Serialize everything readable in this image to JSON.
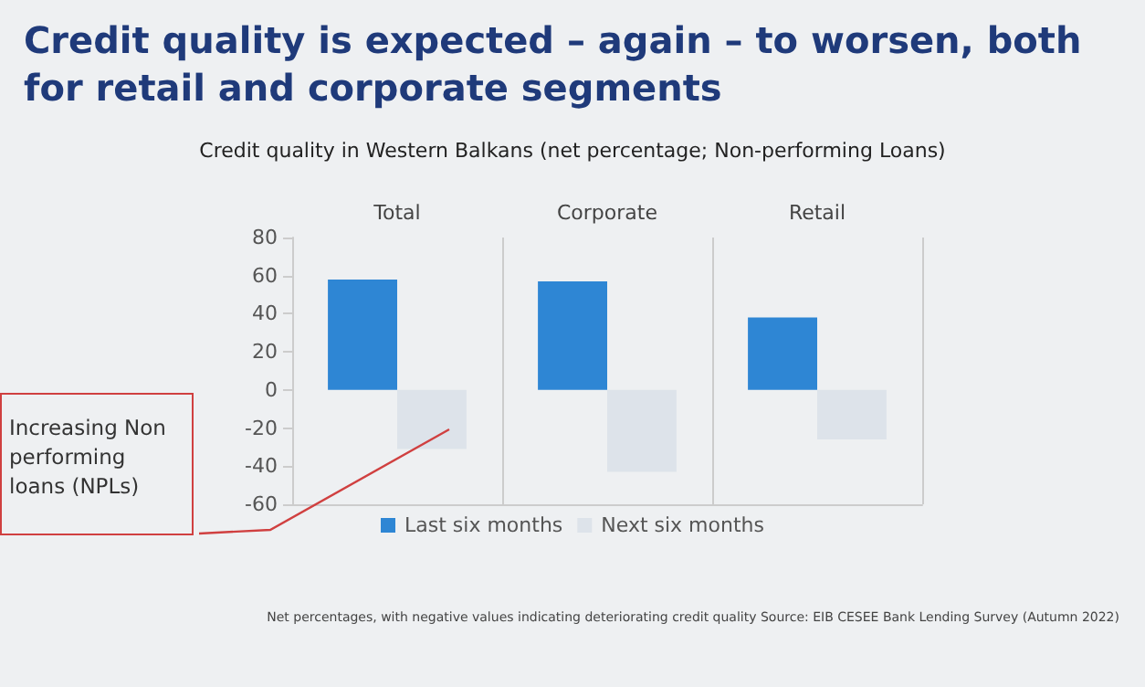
{
  "chart_data": {
    "type": "bar",
    "title": "Credit quality is expected – again – to worsen, both for retail and corporate segments",
    "subtitle": "Credit quality in Western Balkans (net percentage; Non-performing Loans)",
    "categories": [
      "Total",
      "Corporate",
      "Retail"
    ],
    "series": [
      {
        "name": "Last six months",
        "color": "#2e86d4",
        "values": [
          58,
          57,
          38
        ]
      },
      {
        "name": "Next six months",
        "color": "#dde3ea",
        "values": [
          -31,
          -43,
          -26
        ]
      }
    ],
    "ylim": [
      -60,
      80
    ],
    "yticks": [
      -60,
      -40,
      -20,
      0,
      20,
      40,
      60,
      80
    ],
    "grid": "x",
    "legend": "bottom",
    "annotations": [
      "Increasing Non performing loans (NPLs)",
      "Net percentages, with negative values indicating deteriorating credit quality  Source: EIB CESEE Bank Lending Survey (Autumn 2022)"
    ]
  }
}
